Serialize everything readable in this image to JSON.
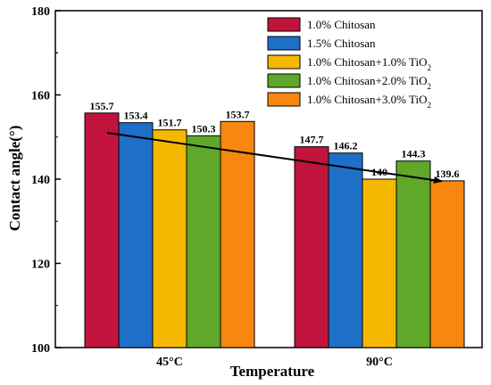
{
  "chart_data": {
    "type": "bar",
    "title": "",
    "xlabel": "Temperature",
    "ylabel": "Contact angle(°)",
    "ylim": [
      100,
      180
    ],
    "yticks": [
      "100",
      "120",
      "140",
      "160",
      "180"
    ],
    "categories": [
      "45°C",
      "90°C"
    ],
    "series": [
      {
        "name": "1.0% Chitosan",
        "sub": "",
        "color": "#c0143c",
        "values": [
          155.7,
          147.7
        ],
        "labels": [
          "155.7",
          "147.7"
        ]
      },
      {
        "name": "1.5% Chitosan",
        "sub": "",
        "color": "#1e6fc8",
        "values": [
          153.4,
          146.2
        ],
        "labels": [
          "153.4",
          "146.2"
        ]
      },
      {
        "name": "1.0% Chitosan+1.0% TiO",
        "sub": "2",
        "color": "#f5b800",
        "values": [
          151.7,
          140
        ],
        "labels": [
          "151.7",
          "140"
        ]
      },
      {
        "name": "1.0% Chitosan+2.0% TiO",
        "sub": "2",
        "color": "#5fa82a",
        "values": [
          150.3,
          144.3
        ],
        "labels": [
          "150.3",
          "144.3"
        ]
      },
      {
        "name": "1.0% Chitosan+3.0% TiO",
        "sub": "2",
        "color": "#f7870f",
        "values": [
          153.7,
          139.6
        ],
        "labels": [
          "153.7",
          "139.6"
        ]
      }
    ],
    "trend_arrow": {
      "from": [
        0,
        151
      ],
      "to": [
        1,
        139.5
      ]
    },
    "grid": false,
    "legend": "top-right"
  }
}
